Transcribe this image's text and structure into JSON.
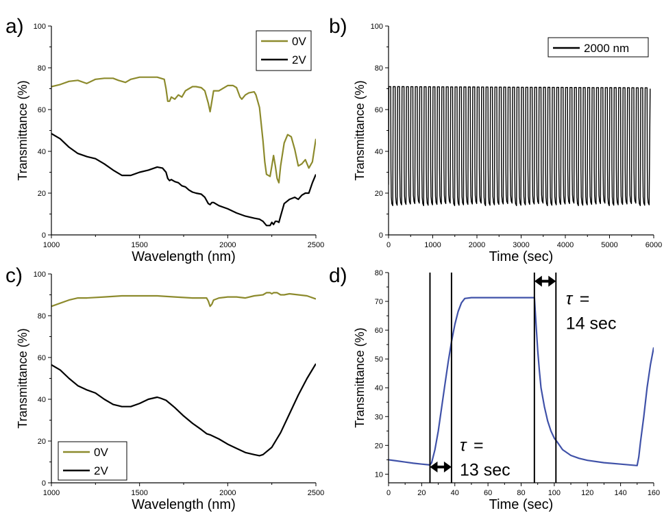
{
  "chart_data": [
    {
      "panel": "a)",
      "type": "line",
      "xlabel": "Wavelength (nm)",
      "ylabel": "Transmittance (%)",
      "xlim": [
        1000,
        2500
      ],
      "ylim": [
        0,
        100
      ],
      "xticks": [
        1000,
        1500,
        2000,
        2500
      ],
      "yticks": [
        0,
        20,
        40,
        60,
        80,
        100
      ],
      "legend": "top-right",
      "series": [
        {
          "name": "0V",
          "color": "#8c8a2c",
          "x": [
            1000,
            1050,
            1100,
            1150,
            1200,
            1250,
            1300,
            1350,
            1380,
            1400,
            1420,
            1450,
            1500,
            1550,
            1600,
            1640,
            1650,
            1660,
            1670,
            1680,
            1700,
            1720,
            1740,
            1760,
            1780,
            1800,
            1820,
            1850,
            1870,
            1890,
            1900,
            1910,
            1920,
            1950,
            2000,
            2030,
            2050,
            2070,
            2080,
            2100,
            2120,
            2150,
            2160,
            2180,
            2200,
            2210,
            2220,
            2240,
            2250,
            2260,
            2270,
            2280,
            2290,
            2300,
            2320,
            2340,
            2360,
            2380,
            2400,
            2420,
            2440,
            2460,
            2480,
            2500
          ],
          "y": [
            71,
            72,
            73.5,
            74,
            72.5,
            74.5,
            75,
            75,
            74,
            73.5,
            73,
            74.5,
            75.5,
            75.5,
            75.5,
            74.5,
            70,
            64,
            64,
            66,
            65,
            67,
            66,
            69,
            70,
            71,
            71,
            70.5,
            69,
            63,
            59,
            64,
            69,
            69,
            71.5,
            71.5,
            70.5,
            66,
            65,
            67,
            68,
            68.5,
            67,
            61,
            45,
            35,
            29,
            28,
            33,
            38,
            33,
            27,
            25,
            33,
            44,
            48,
            47,
            41,
            33,
            34,
            36,
            32,
            35,
            46
          ]
        },
        {
          "name": "2V",
          "color": "#000000",
          "x": [
            1000,
            1050,
            1100,
            1150,
            1200,
            1250,
            1300,
            1350,
            1400,
            1450,
            1500,
            1550,
            1600,
            1630,
            1650,
            1660,
            1670,
            1680,
            1700,
            1720,
            1740,
            1760,
            1780,
            1800,
            1820,
            1850,
            1870,
            1890,
            1900,
            1910,
            1920,
            1950,
            2000,
            2050,
            2100,
            2150,
            2180,
            2200,
            2220,
            2240,
            2250,
            2260,
            2270,
            2280,
            2290,
            2300,
            2320,
            2350,
            2380,
            2400,
            2420,
            2440,
            2460,
            2480,
            2500
          ],
          "y": [
            48.5,
            46,
            42,
            39,
            37.5,
            36.5,
            34,
            31,
            28.5,
            28.5,
            30,
            31,
            32.5,
            32,
            30,
            27,
            26,
            26.5,
            25.5,
            25,
            23.5,
            23,
            21.5,
            20.5,
            20,
            19.5,
            18,
            15,
            14.5,
            15.5,
            15.5,
            14,
            12.5,
            10.5,
            9,
            8,
            7.5,
            6.5,
            4.5,
            4.5,
            6,
            5,
            6.5,
            6.5,
            6,
            9,
            15,
            17,
            18,
            17,
            19,
            20,
            20,
            25,
            29
          ]
        }
      ]
    },
    {
      "panel": "b)",
      "type": "line",
      "xlabel": "Time (sec)",
      "ylabel": "Transmittance (%)",
      "xlim": [
        0,
        6000
      ],
      "ylim": [
        0,
        100
      ],
      "xticks": [
        0,
        1000,
        2000,
        3000,
        4000,
        5000,
        6000
      ],
      "yticks": [
        0,
        20,
        40,
        60,
        80,
        100
      ],
      "legend": "top-right",
      "cycle_period_sec": 100,
      "cycles": 59,
      "t_end_sec": 5920,
      "high_transmittance": 71,
      "low_transmittance": 14,
      "series": [
        {
          "name": "2000 nm",
          "color": "#000000"
        }
      ]
    },
    {
      "panel": "c)",
      "type": "line",
      "xlabel": "Wavelength (nm)",
      "ylabel": "Transmittance (%)",
      "xlim": [
        1000,
        2500
      ],
      "ylim": [
        0,
        100
      ],
      "xticks": [
        1000,
        1500,
        2000,
        2500
      ],
      "yticks": [
        0,
        20,
        40,
        60,
        80,
        100
      ],
      "legend": "bottom-left",
      "series": [
        {
          "name": "0V",
          "color": "#8c8a2c",
          "x": [
            1000,
            1050,
            1100,
            1150,
            1200,
            1300,
            1400,
            1500,
            1600,
            1700,
            1800,
            1850,
            1880,
            1890,
            1900,
            1910,
            1920,
            1950,
            2000,
            2050,
            2100,
            2150,
            2200,
            2220,
            2240,
            2250,
            2260,
            2280,
            2300,
            2320,
            2350,
            2400,
            2450,
            2500
          ],
          "y": [
            84.5,
            86,
            87.5,
            88.5,
            88.5,
            89,
            89.5,
            89.5,
            89.5,
            89,
            88.5,
            88.5,
            88.5,
            87,
            84.5,
            85.5,
            87.5,
            88.5,
            89,
            89,
            88.5,
            89.5,
            90,
            91,
            91,
            90.5,
            91,
            91,
            90,
            90,
            90.5,
            90,
            89.5,
            88
          ]
        },
        {
          "name": "2V",
          "color": "#000000",
          "x": [
            1000,
            1050,
            1100,
            1150,
            1200,
            1250,
            1300,
            1350,
            1400,
            1450,
            1500,
            1550,
            1600,
            1620,
            1650,
            1700,
            1750,
            1800,
            1850,
            1880,
            1900,
            1950,
            2000,
            2050,
            2100,
            2150,
            2180,
            2200,
            2250,
            2300,
            2350,
            2400,
            2450,
            2500
          ],
          "y": [
            56.5,
            54,
            50,
            46.5,
            44.5,
            43,
            40,
            37.5,
            36.5,
            36.5,
            38,
            40,
            41,
            40.5,
            39.5,
            36,
            32,
            28.5,
            25.5,
            23.5,
            23,
            21,
            18.5,
            16.5,
            14.5,
            13.5,
            13,
            13.5,
            17,
            24,
            33,
            42,
            50,
            57
          ]
        }
      ]
    },
    {
      "panel": "d)",
      "type": "line",
      "xlabel": "Time (sec)",
      "ylabel": "Transmittance (%)",
      "xlim": [
        0,
        160
      ],
      "ylim": [
        7,
        80
      ],
      "xticks": [
        0,
        20,
        40,
        60,
        80,
        100,
        120,
        140,
        160
      ],
      "yticks": [
        10,
        20,
        30,
        40,
        50,
        60,
        70,
        80
      ],
      "series": [
        {
          "name": "",
          "color": "#3f51a8",
          "x": [
            0,
            5,
            10,
            15,
            20,
            25,
            26,
            28,
            30,
            32,
            34,
            36,
            38,
            40,
            42,
            44,
            46,
            50,
            60,
            70,
            80,
            88,
            89,
            90,
            91,
            92,
            94,
            96,
            98,
            100,
            102,
            105,
            110,
            115,
            120,
            130,
            140,
            150,
            151,
            152,
            154,
            156,
            158,
            160
          ],
          "y": [
            15,
            14.6,
            14.2,
            13.8,
            13.5,
            13.2,
            14,
            18.5,
            25,
            33,
            41,
            49,
            56,
            62,
            66.5,
            69.5,
            71,
            71.3,
            71.3,
            71.3,
            71.3,
            71.3,
            62,
            53,
            46,
            40,
            33.5,
            28.5,
            25,
            22.5,
            21,
            18.5,
            16.5,
            15.5,
            14.8,
            14,
            13.5,
            13,
            16,
            21,
            30,
            40,
            48,
            54
          ]
        }
      ],
      "vlines": [
        25,
        38,
        88,
        101
      ],
      "annotations": [
        {
          "symbol": "τ",
          "line1": "=",
          "line2": "13 sec",
          "x": 43,
          "y": 18
        },
        {
          "symbol": "τ",
          "line1": "=",
          "line2": "14 sec",
          "x": 107,
          "y": 69
        }
      ]
    }
  ]
}
